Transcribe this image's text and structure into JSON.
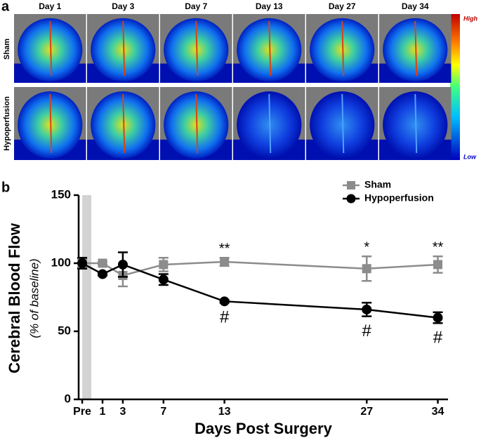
{
  "panel_a": {
    "label": "a",
    "days": [
      "Day 1",
      "Day 3",
      "Day 7",
      "Day 13",
      "Day 27",
      "Day 34"
    ],
    "rows": [
      "Sham",
      "Hypoperfusion"
    ],
    "scale": [
      "High",
      "Low"
    ]
  },
  "chart_data": {
    "type": "line",
    "label": "b",
    "x": [
      -1,
      1,
      3,
      7,
      13,
      27,
      34
    ],
    "xlim": [
      -1.35,
      35
    ],
    "xticks": [
      {
        "value": -1,
        "label": "Pre"
      },
      1,
      3,
      7,
      13,
      27,
      34
    ],
    "ylim": [
      0,
      150
    ],
    "yticks": [
      0,
      50,
      100,
      150
    ],
    "x_label": "Days Post Surgery",
    "y_label": "Cerebral Blood Flow",
    "y_sublabel": "(% of baseline)",
    "legend": "upper right",
    "series": [
      {
        "name": "Sham",
        "color": "#8c8c8c",
        "marker": "square",
        "values": [
          100,
          100,
          91,
          99,
          101,
          96,
          99
        ],
        "errors": [
          3,
          1,
          8,
          5,
          3,
          9,
          6
        ]
      },
      {
        "name": "Hypoperfusion",
        "color": "#000000",
        "marker": "circle",
        "values": [
          100,
          92,
          99,
          88,
          72,
          66,
          60
        ],
        "errors": [
          4,
          1,
          9,
          4,
          1,
          5,
          4
        ]
      }
    ],
    "annotations_above": [
      {
        "x": 13,
        "text": "**"
      },
      {
        "x": 27,
        "text": "*"
      },
      {
        "x": 34,
        "text": "**"
      }
    ],
    "annotations_below": [
      {
        "x": 13,
        "text": "#"
      },
      {
        "x": 27,
        "text": "#"
      },
      {
        "x": 34,
        "text": "#"
      }
    ]
  }
}
